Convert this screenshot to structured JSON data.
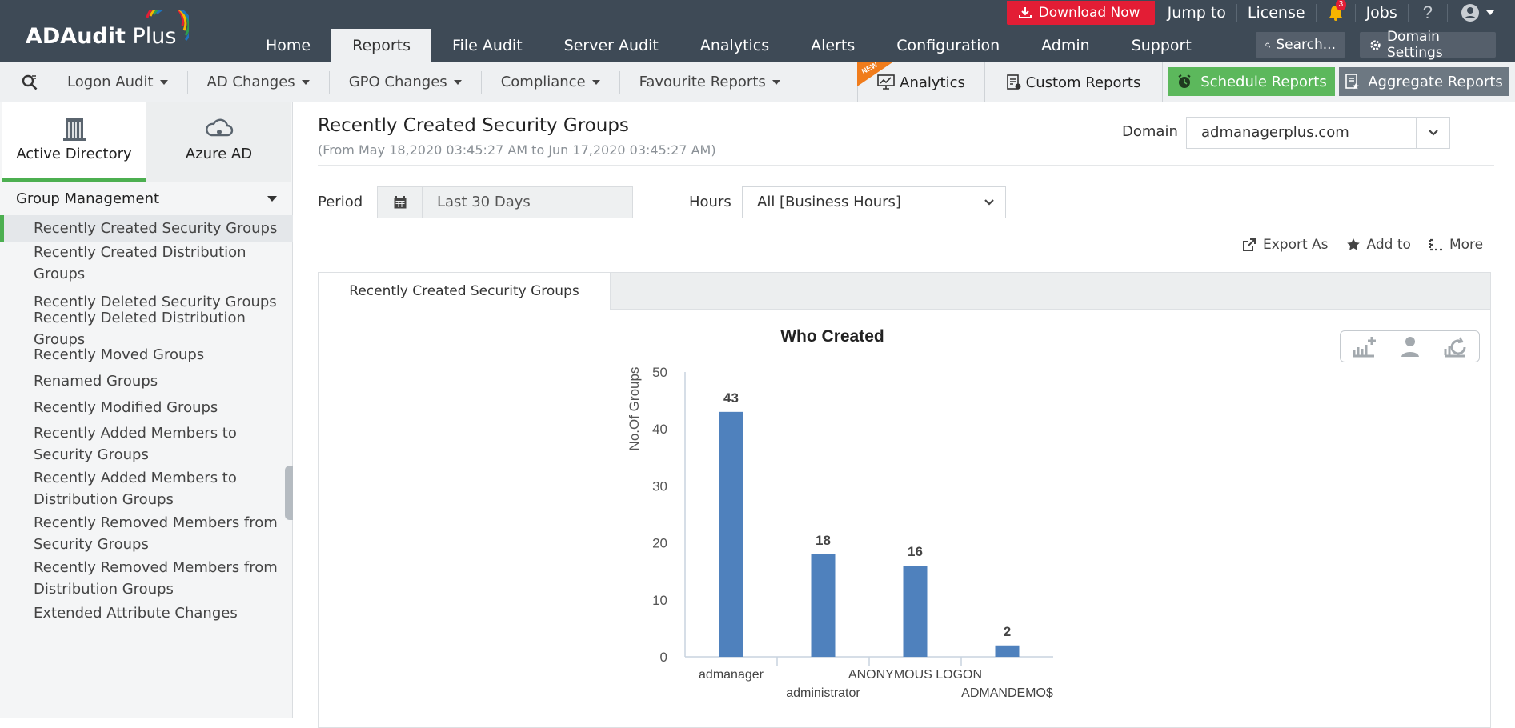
{
  "app": {
    "name_bold": "ADAudit",
    "name_rest": " Plus"
  },
  "top_nav": [
    {
      "label": "Home"
    },
    {
      "label": "Reports",
      "active": true
    },
    {
      "label": "File Audit"
    },
    {
      "label": "Server Audit"
    },
    {
      "label": "Analytics"
    },
    {
      "label": "Alerts"
    },
    {
      "label": "Configuration"
    },
    {
      "label": "Admin"
    },
    {
      "label": "Support"
    }
  ],
  "utility": {
    "download": "Download Now",
    "jump_to": "Jump to",
    "license": "License",
    "notifications": "3",
    "jobs": "Jobs",
    "help": "?",
    "search": "Search...",
    "domain_settings": "Domain Settings"
  },
  "sub_nav": {
    "menus": [
      "Logon Audit",
      "AD Changes",
      "GPO Changes",
      "Compliance",
      "Favourite Reports"
    ],
    "new_badge": "NEW",
    "analytics": "Analytics",
    "custom_reports": "Custom Reports",
    "schedule_reports": "Schedule Reports",
    "aggregate_reports": "Aggregate Reports"
  },
  "sidebar": {
    "tabs": [
      "Active Directory",
      "Azure AD"
    ],
    "section": "Group Management",
    "items": [
      {
        "label": "Recently Created Security Groups",
        "selected": true
      },
      {
        "label": "Recently Created Distribution Groups"
      },
      {
        "label": "Recently Deleted Security Groups"
      },
      {
        "label": "Recently Deleted Distribution Groups"
      },
      {
        "label": "Recently Moved Groups"
      },
      {
        "label": "Renamed Groups"
      },
      {
        "label": "Recently Modified Groups"
      },
      {
        "label": "Recently Added Members to Security Groups"
      },
      {
        "label": "Recently Added Members to Distribution Groups"
      },
      {
        "label": "Recently Removed Members from Security Groups"
      },
      {
        "label": "Recently Removed Members from Distribution Groups"
      },
      {
        "label": "Extended Attribute Changes"
      }
    ]
  },
  "report": {
    "title": "Recently Created Security Groups",
    "date_range": "(From May 18,2020 03:45:27 AM to Jun 17,2020 03:45:27 AM)",
    "domain_label": "Domain",
    "domain_value": "admanagerplus.com",
    "period_label": "Period",
    "period_value": "Last 30 Days",
    "hours_label": "Hours",
    "hours_value": "All [Business Hours]",
    "actions": [
      "Export As",
      "Add to",
      "More"
    ],
    "tab": "Recently Created Security Groups"
  },
  "colors": {
    "topbar": "#3e4a56",
    "accent_green": "#5cb85c",
    "bar": "#4f81bd",
    "download_red": "#e31d35"
  },
  "chart_data": {
    "type": "bar",
    "title": "Who Created",
    "xlabel": "",
    "ylabel": "No.Of Groups",
    "categories": [
      "admanager",
      "administrator",
      "ANONYMOUS LOGON",
      "ADMANDEMO$"
    ],
    "values": [
      43,
      18,
      16,
      2
    ],
    "ylim": [
      0,
      50
    ],
    "yticks": [
      0,
      10,
      20,
      30,
      40,
      50
    ],
    "data_labels": true,
    "grid": false
  }
}
